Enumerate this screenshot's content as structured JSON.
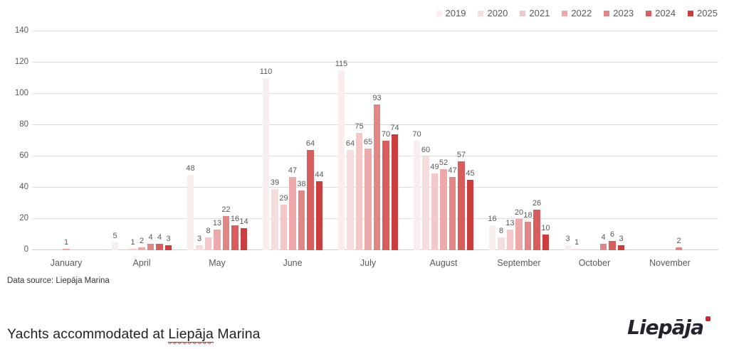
{
  "chart_data": {
    "type": "bar",
    "title": "Yachts accommodated at Liepāja Marina",
    "categories": [
      "January",
      "April",
      "May",
      "June",
      "July",
      "August",
      "September",
      "October",
      "November"
    ],
    "series": [
      {
        "name": "2019",
        "color": "#faeded",
        "values": [
          0,
          5,
          48,
          110,
          115,
          70,
          16,
          3,
          0
        ]
      },
      {
        "name": "2020",
        "color": "#f6dddd",
        "values": [
          0,
          0,
          3,
          39,
          64,
          60,
          8,
          1,
          0
        ]
      },
      {
        "name": "2021",
        "color": "#f2c8c8",
        "values": [
          0,
          1,
          8,
          29,
          75,
          49,
          13,
          0,
          0
        ]
      },
      {
        "name": "2022",
        "color": "#eda9a9",
        "values": [
          1,
          2,
          13,
          47,
          65,
          52,
          20,
          0,
          0
        ]
      },
      {
        "name": "2023",
        "color": "#e28585",
        "values": [
          0,
          4,
          22,
          38,
          93,
          47,
          18,
          4,
          2
        ]
      },
      {
        "name": "2024",
        "color": "#d85e5e",
        "values": [
          0,
          4,
          16,
          64,
          70,
          57,
          26,
          6,
          0
        ]
      },
      {
        "name": "2025",
        "color": "#cb3e3e",
        "values": [
          0,
          3,
          14,
          44,
          74,
          45,
          10,
          3,
          0
        ]
      }
    ],
    "ylim": [
      0,
      140
    ],
    "yticks": [
      0,
      20,
      40,
      60,
      80,
      100,
      120,
      140
    ],
    "grid": true,
    "legend_position": "top-right",
    "bar_labels_shown": true
  },
  "footer": {
    "data_source": "Data source: Liepāja Marina"
  },
  "title": {
    "prefix": "Yachts accommodated at ",
    "underlined": "Liepāja",
    "suffix": " Marina"
  },
  "logo": {
    "text": "Liepāja"
  }
}
